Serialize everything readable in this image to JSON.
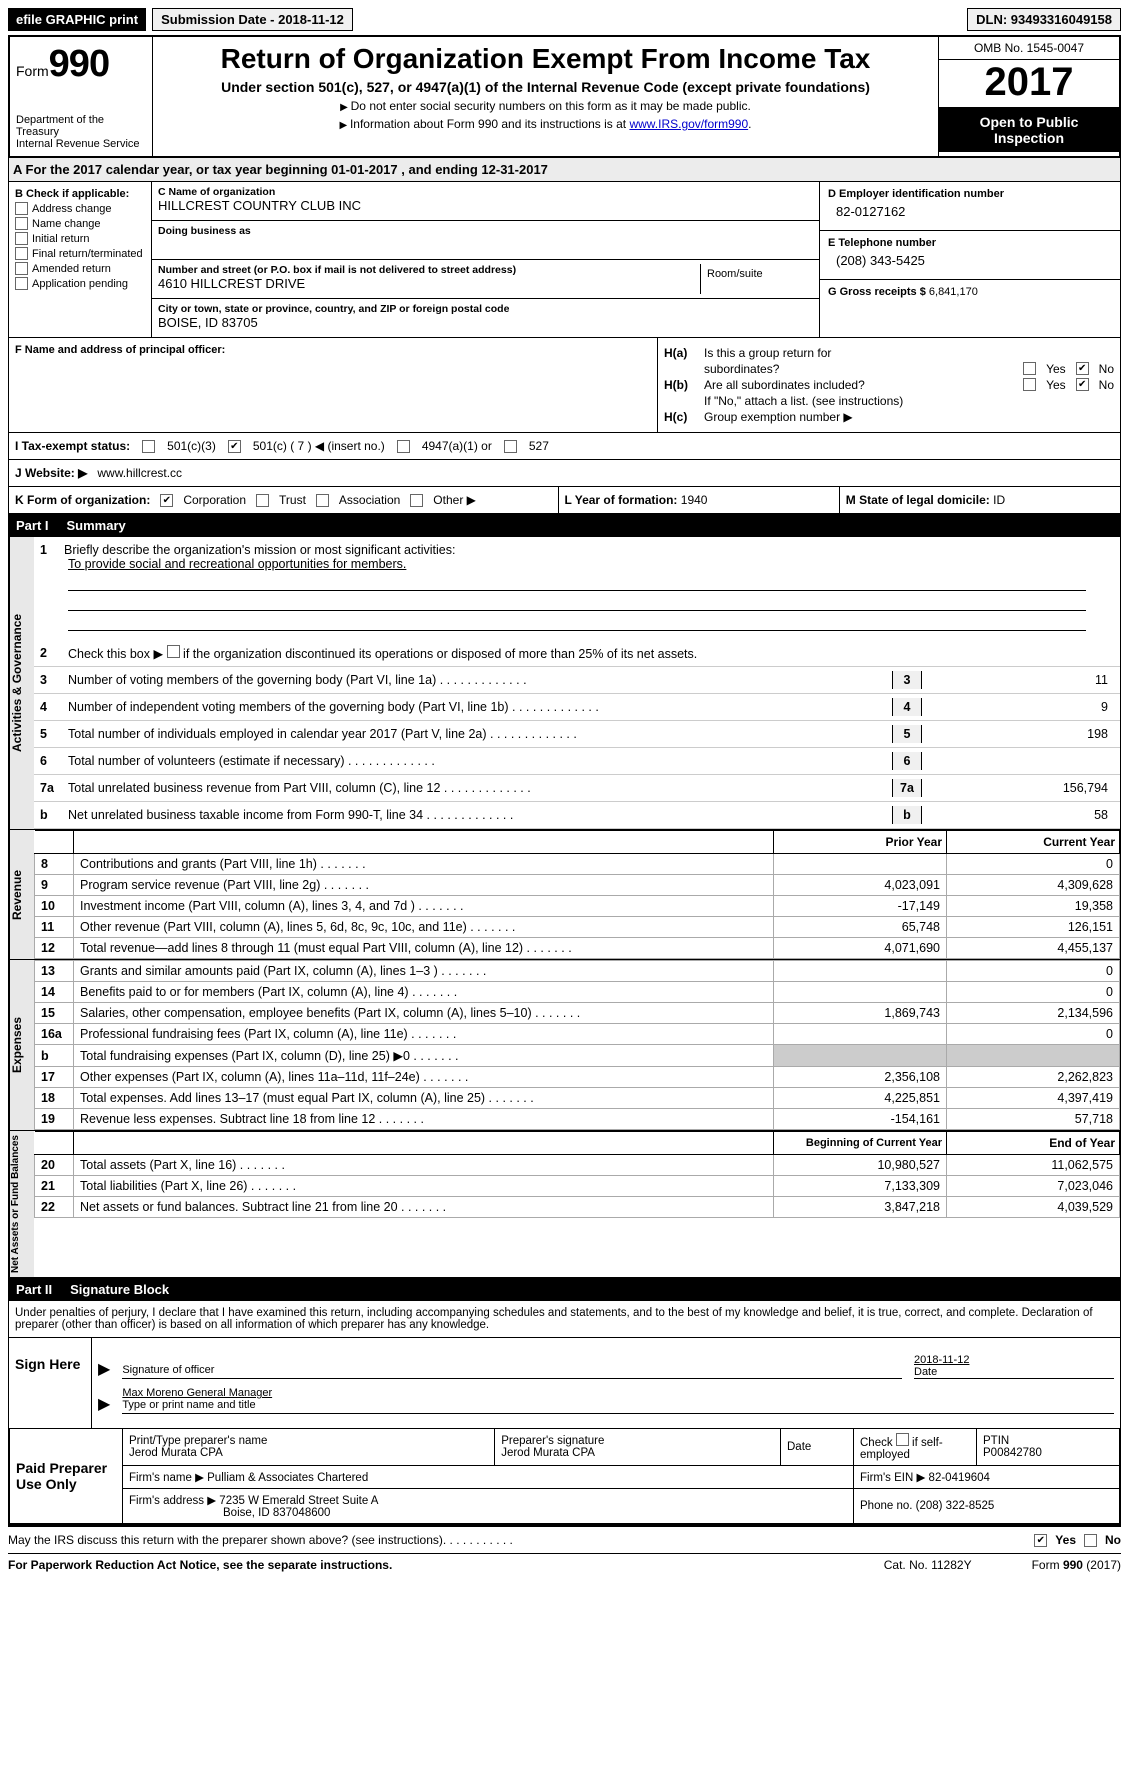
{
  "efile": {
    "btn": "efile GRAPHIC print",
    "sub_label": "Submission Date - 2018-11-12",
    "dln": "DLN: 93493316049158"
  },
  "header": {
    "form_word": "Form",
    "form_num": "990",
    "dept1": "Department of the Treasury",
    "dept2": "Internal Revenue Service",
    "title": "Return of Organization Exempt From Income Tax",
    "subtitle": "Under section 501(c), 527, or 4947(a)(1) of the Internal Revenue Code (except private foundations)",
    "note1": "Do not enter social security numbers on this form as it may be made public.",
    "note2": "Information about Form 990 and its instructions is at ",
    "note2_link": "www.IRS.gov/form990",
    "omb": "OMB No. 1545-0047",
    "year": "2017",
    "open1": "Open to Public",
    "open2": "Inspection"
  },
  "rowA": "A  For the 2017 calendar year, or tax year beginning 01-01-2017   , and ending 12-31-2017",
  "B": {
    "label": "B Check if applicable:",
    "items": [
      "Address change",
      "Name change",
      "Initial return",
      "Final return/terminated",
      "Amended return",
      "Application pending"
    ]
  },
  "C": {
    "name_lbl": "C Name of organization",
    "name": "HILLCREST COUNTRY CLUB INC",
    "dba_lbl": "Doing business as",
    "addr_lbl": "Number and street (or P.O. box if mail is not delivered to street address)",
    "addr": "4610 HILLCREST DRIVE",
    "room_lbl": "Room/suite",
    "city_lbl": "City or town, state or province, country, and ZIP or foreign postal code",
    "city": "BOISE, ID  83705"
  },
  "D": {
    "ein_lbl": "D Employer identification number",
    "ein": "82-0127162",
    "tel_lbl": "E Telephone number",
    "tel": "(208) 343-5425",
    "gross_lbl": "G Gross receipts $",
    "gross": "6,841,170"
  },
  "F": {
    "lbl": "F Name and address of principal officer:"
  },
  "H": {
    "a_lbl": "Is this a group return for",
    "a_sub": "subordinates?",
    "b_lbl": "Are all subordinates included?",
    "b_note": "If \"No,\" attach a list. (see instructions)",
    "c_lbl": "Group exemption number ▶",
    "yes": "Yes",
    "no": "No"
  },
  "I": {
    "lbl": "I  Tax-exempt status:",
    "c3": "501(c)(3)",
    "c": "501(c) (",
    "c_num": "7",
    "c_end": ") ◀ (insert no.)",
    "a": "4947(a)(1) or",
    "z": "527"
  },
  "J": {
    "lbl": "J  Website: ▶",
    "val": "www.hillcrest.cc"
  },
  "K": {
    "lbl": "K Form of organization:",
    "corp": "Corporation",
    "trust": "Trust",
    "assoc": "Association",
    "other": "Other ▶"
  },
  "L": {
    "lbl": "L Year of formation:",
    "val": "1940"
  },
  "M": {
    "lbl": "M State of legal domicile:",
    "val": "ID"
  },
  "part1": {
    "tag": "Part I",
    "title": "Summary"
  },
  "gov": {
    "tab": "Activities & Governance",
    "l1_num": "1",
    "l1": "Briefly describe the organization's mission or most significant activities:",
    "l1_val": "To provide social and recreational opportunities for members.",
    "l2_num": "2",
    "l2": "Check this box ▶",
    "l2b": "if the organization discontinued its operations or disposed of more than 25% of its net assets.",
    "rows": [
      {
        "n": "3",
        "d": "Number of voting members of the governing body (Part VI, line 1a)",
        "v": "11"
      },
      {
        "n": "4",
        "d": "Number of independent voting members of the governing body (Part VI, line 1b)",
        "v": "9"
      },
      {
        "n": "5",
        "d": "Total number of individuals employed in calendar year 2017 (Part V, line 2a)",
        "v": "198"
      },
      {
        "n": "6",
        "d": "Total number of volunteers (estimate if necessary)",
        "v": ""
      },
      {
        "n": "7a",
        "d": "Total unrelated business revenue from Part VIII, column (C), line 12",
        "v": "156,794"
      },
      {
        "n": "b",
        "d": "Net unrelated business taxable income from Form 990-T, line 34",
        "v": "58"
      }
    ]
  },
  "revexp": {
    "head_prior": "Prior Year",
    "head_curr": "Current Year",
    "rev_tab": "Revenue",
    "rev": [
      {
        "n": "8",
        "d": "Contributions and grants (Part VIII, line 1h)",
        "p": "",
        "c": "0"
      },
      {
        "n": "9",
        "d": "Program service revenue (Part VIII, line 2g)",
        "p": "4,023,091",
        "c": "4,309,628"
      },
      {
        "n": "10",
        "d": "Investment income (Part VIII, column (A), lines 3, 4, and 7d )",
        "p": "-17,149",
        "c": "19,358"
      },
      {
        "n": "11",
        "d": "Other revenue (Part VIII, column (A), lines 5, 6d, 8c, 9c, 10c, and 11e)",
        "p": "65,748",
        "c": "126,151"
      },
      {
        "n": "12",
        "d": "Total revenue—add lines 8 through 11 (must equal Part VIII, column (A), line 12)",
        "p": "4,071,690",
        "c": "4,455,137"
      }
    ],
    "exp_tab": "Expenses",
    "exp": [
      {
        "n": "13",
        "d": "Grants and similar amounts paid (Part IX, column (A), lines 1–3 )",
        "p": "",
        "c": "0"
      },
      {
        "n": "14",
        "d": "Benefits paid to or for members (Part IX, column (A), line 4)",
        "p": "",
        "c": "0"
      },
      {
        "n": "15",
        "d": "Salaries, other compensation, employee benefits (Part IX, column (A), lines 5–10)",
        "p": "1,869,743",
        "c": "2,134,596"
      },
      {
        "n": "16a",
        "d": "Professional fundraising fees (Part IX, column (A), line 11e)",
        "p": "",
        "c": "0"
      },
      {
        "n": "b",
        "d": "Total fundraising expenses (Part IX, column (D), line 25) ▶0",
        "p": "SHADE",
        "c": "SHADE"
      },
      {
        "n": "17",
        "d": "Other expenses (Part IX, column (A), lines 11a–11d, 11f–24e)",
        "p": "2,356,108",
        "c": "2,262,823"
      },
      {
        "n": "18",
        "d": "Total expenses. Add lines 13–17 (must equal Part IX, column (A), line 25)",
        "p": "4,225,851",
        "c": "4,397,419"
      },
      {
        "n": "19",
        "d": "Revenue less expenses. Subtract line 18 from line 12",
        "p": "-154,161",
        "c": "57,718"
      }
    ],
    "net_tab": "Net Assets or Fund Balances",
    "head_beg": "Beginning of Current Year",
    "head_end": "End of Year",
    "net": [
      {
        "n": "20",
        "d": "Total assets (Part X, line 16)",
        "p": "10,980,527",
        "c": "11,062,575"
      },
      {
        "n": "21",
        "d": "Total liabilities (Part X, line 26)",
        "p": "7,133,309",
        "c": "7,023,046"
      },
      {
        "n": "22",
        "d": "Net assets or fund balances. Subtract line 21 from line 20",
        "p": "3,847,218",
        "c": "4,039,529"
      }
    ]
  },
  "part2": {
    "tag": "Part II",
    "title": "Signature Block"
  },
  "sig": {
    "penalty": "Under penalties of perjury, I declare that I have examined this return, including accompanying schedules and statements, and to the best of my knowledge and belief, it is true, correct, and complete. Declaration of preparer (other than officer) is based on all information of which preparer has any knowledge.",
    "sign_here": "Sign Here",
    "sig_officer": "Signature of officer",
    "date": "Date",
    "date_val": "2018-11-12",
    "name_title": "Max Moreno General Manager",
    "name_lbl": "Type or print name and title",
    "paid": "Paid Preparer Use Only",
    "prep_name_lbl": "Print/Type preparer's name",
    "prep_name": "Jerod Murata CPA",
    "prep_sig_lbl": "Preparer's signature",
    "prep_sig": "Jerod Murata CPA",
    "prep_date_lbl": "Date",
    "self_emp": "Check",
    "self_emp2": "if self-employed",
    "ptin_lbl": "PTIN",
    "ptin": "P00842780",
    "firm_name_lbl": "Firm's name    ▶",
    "firm_name": "Pulliam & Associates Chartered",
    "firm_ein_lbl": "Firm's EIN ▶",
    "firm_ein": "82-0419604",
    "firm_addr_lbl": "Firm's address ▶",
    "firm_addr1": "7235 W Emerald Street Suite A",
    "firm_addr2": "Boise, ID  837048600",
    "phone_lbl": "Phone no.",
    "phone": "(208) 322-8525"
  },
  "footer": {
    "discuss": "May the IRS discuss this return with the preparer shown above? (see instructions)",
    "yes": "Yes",
    "no": "No",
    "paperwork": "For Paperwork Reduction Act Notice, see the separate instructions.",
    "cat": "Cat. No. 11282Y",
    "form": "Form 990 (2017)"
  }
}
